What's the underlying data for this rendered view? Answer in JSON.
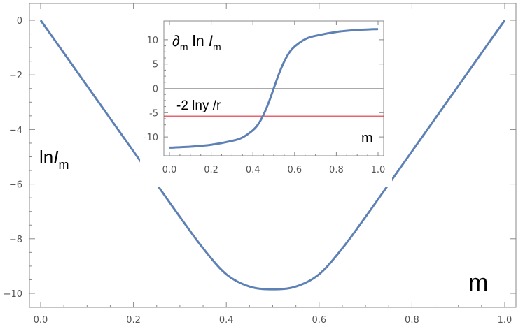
{
  "chart_data": [
    {
      "id": "main",
      "type": "line",
      "xlabel": "m",
      "ylabel_text": "ln",
      "ylabel_italic": "I",
      "ylabel_sub": "m",
      "xlim": [
        0,
        1
      ],
      "ylim": [
        -10,
        0
      ],
      "x_ticks": [
        0.0,
        0.2,
        0.4,
        0.6,
        0.8,
        1.0
      ],
      "x_tick_labels": [
        "0.0",
        "0.2",
        "0.4",
        "0.6",
        "0.8",
        "1.0"
      ],
      "y_ticks": [
        0,
        -2,
        -4,
        -6,
        -8,
        -10
      ],
      "y_tick_labels": [
        "0",
        "−2",
        "−4",
        "−6",
        "−8",
        "−10"
      ],
      "series": [
        {
          "color": "#5e81b5",
          "x": [
            0.0,
            0.05,
            0.1,
            0.15,
            0.2,
            0.25,
            0.3,
            0.35,
            0.4,
            0.45,
            0.5,
            0.55,
            0.6,
            0.65,
            0.7,
            0.75,
            0.8,
            0.85,
            0.9,
            0.95,
            1.0
          ],
          "y": [
            0.0,
            -1.2,
            -2.4,
            -3.6,
            -4.8,
            -6.0,
            -7.2,
            -8.35,
            -9.3,
            -9.75,
            -9.85,
            -9.75,
            -9.3,
            -8.35,
            -7.2,
            -6.0,
            -4.8,
            -3.6,
            -2.4,
            -1.2,
            0.0
          ]
        }
      ]
    },
    {
      "id": "inset",
      "type": "line",
      "xlabel": "m",
      "ylabel_prefix": "∂",
      "ylabel_prefix_sub": "m",
      "ylabel_mid": " ln ",
      "ylabel_italic": "I",
      "ylabel_sub": "m",
      "hline_label": "-2 lny /r",
      "xlim": [
        0,
        1
      ],
      "ylim": [
        -13,
        13
      ],
      "x_ticks": [
        0.0,
        0.2,
        0.4,
        0.6,
        0.8,
        1.0
      ],
      "x_tick_labels": [
        "0.0",
        "0.2",
        "0.4",
        "0.6",
        "0.8",
        "1.0"
      ],
      "y_ticks": [
        10,
        5,
        0,
        -5,
        -10
      ],
      "y_tick_labels": [
        "10",
        "5",
        "0",
        "-5",
        "-10"
      ],
      "zero_line": 0,
      "hline": {
        "y": -5.7,
        "color": "#e0303e"
      },
      "series": [
        {
          "color": "#5e81b5",
          "x": [
            0.0,
            0.1,
            0.2,
            0.3,
            0.35,
            0.4,
            0.425,
            0.45,
            0.475,
            0.5,
            0.525,
            0.55,
            0.575,
            0.6,
            0.65,
            0.7,
            0.8,
            0.9,
            1.0
          ],
          "y": [
            -12.2,
            -12.0,
            -11.6,
            -10.8,
            -10.1,
            -8.6,
            -7.4,
            -5.5,
            -3.0,
            0.0,
            3.0,
            5.5,
            7.4,
            8.6,
            10.1,
            10.8,
            11.6,
            12.0,
            12.2
          ]
        }
      ]
    }
  ]
}
